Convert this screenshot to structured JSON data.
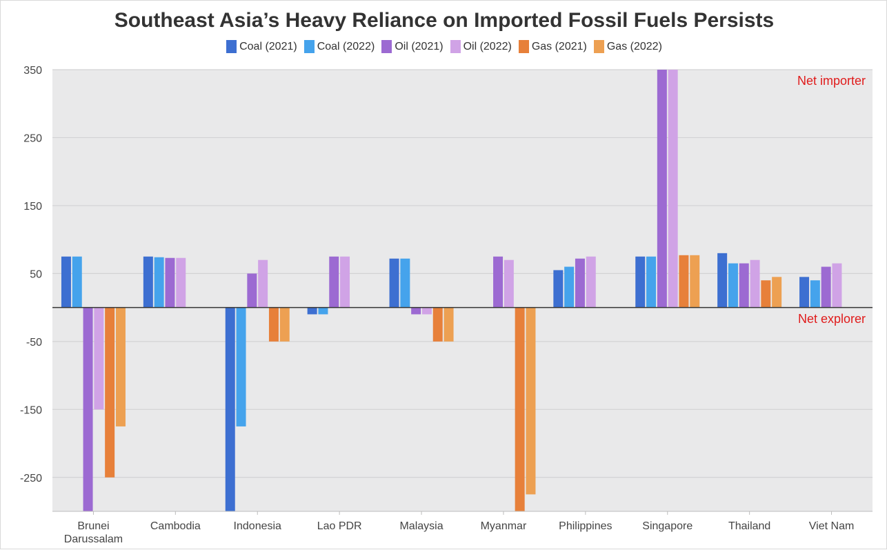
{
  "chart_data": {
    "type": "bar",
    "title": "Southeast Asia’s Heavy Reliance on Imported Fossil Fuels Persists",
    "xlabel": "",
    "ylabel": "",
    "ylim": [
      -300,
      350
    ],
    "yticks": [
      350,
      250,
      150,
      50,
      -50,
      -150,
      -250
    ],
    "ytick_labels": [
      "350",
      "250",
      "150",
      "50",
      "-50",
      "-150",
      "-250"
    ],
    "grid": true,
    "legend_position": "top-center",
    "categories": [
      "Brunei Darussalam",
      "Cambodia",
      "Indonesia",
      "Lao PDR",
      "Malaysia",
      "Myanmar",
      "Philippines",
      "Singapore",
      "Thailand",
      "Viet Nam"
    ],
    "category_label_lines": [
      [
        "Brunei",
        "Darussalam"
      ],
      [
        "Cambodia"
      ],
      [
        "Indonesia"
      ],
      [
        "Lao PDR"
      ],
      [
        "Malaysia"
      ],
      [
        "Myanmar"
      ],
      [
        "Philippines"
      ],
      [
        "Singapore"
      ],
      [
        "Thailand"
      ],
      [
        "Viet Nam"
      ]
    ],
    "series": [
      {
        "name": "Coal (2021)",
        "color": "#3d6fd1",
        "values": [
          75,
          75,
          -300,
          -10,
          72,
          null,
          55,
          75,
          80,
          45
        ]
      },
      {
        "name": "Coal (2022)",
        "color": "#45a3ec",
        "values": [
          75,
          74,
          -175,
          -10,
          72,
          null,
          60,
          75,
          65,
          40
        ]
      },
      {
        "name": "Oil (2021)",
        "color": "#9c6ad2",
        "values": [
          -300,
          73,
          50,
          75,
          -10,
          75,
          72,
          350,
          65,
          60
        ]
      },
      {
        "name": "Oil (2022)",
        "color": "#d0a3e6",
        "values": [
          -150,
          73,
          70,
          75,
          -10,
          70,
          75,
          350,
          70,
          65
        ]
      },
      {
        "name": "Gas (2021)",
        "color": "#e7803a",
        "values": [
          -250,
          null,
          -50,
          null,
          -50,
          -300,
          null,
          77,
          40,
          null
        ]
      },
      {
        "name": "Gas (2022)",
        "color": "#eda052",
        "values": [
          -175,
          null,
          -50,
          null,
          -50,
          -275,
          null,
          77,
          45,
          null
        ]
      }
    ],
    "annotations": {
      "net_importer": "Net importer",
      "net_explorer": "Net explorer"
    },
    "annotation_color": "#e01b1b"
  }
}
